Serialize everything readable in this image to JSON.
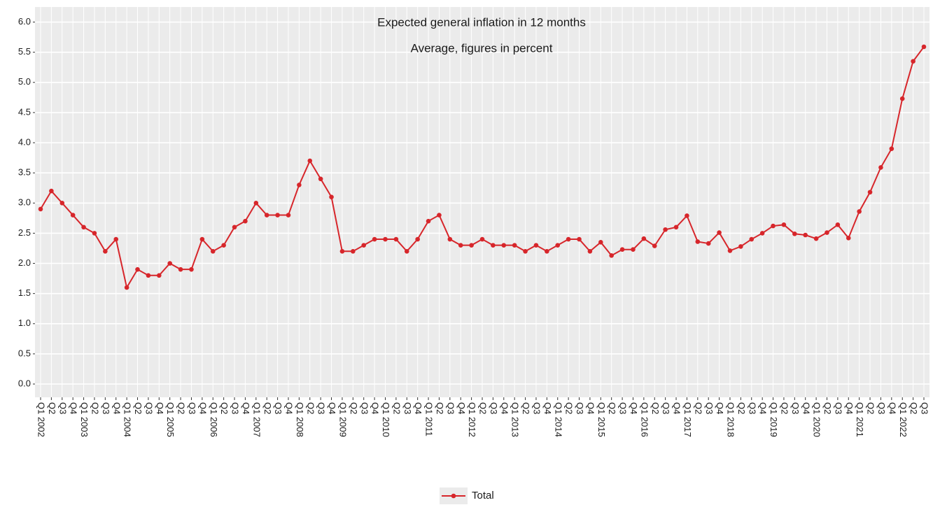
{
  "chart_data": {
    "type": "line",
    "title": "Expected general inflation in 12 months",
    "subtitle": "Average, figures in percent",
    "categories": [
      "Q1 2002",
      "Q2",
      "Q3",
      "Q4",
      "Q1 2003",
      "Q2",
      "Q3",
      "Q4",
      "Q1 2004",
      "Q2",
      "Q3",
      "Q4",
      "Q1 2005",
      "Q2",
      "Q3",
      "Q4",
      "Q1 2006",
      "Q2",
      "Q3",
      "Q4",
      "Q1 2007",
      "Q2",
      "Q3",
      "Q4",
      "Q1 2008",
      "Q2",
      "Q3",
      "Q4",
      "Q1 2009",
      "Q2",
      "Q3",
      "Q4",
      "Q1 2010",
      "Q2",
      "Q3",
      "Q4",
      "Q1 2011",
      "Q2",
      "Q3",
      "Q4",
      "Q1 2012",
      "Q2",
      "Q3",
      "Q4",
      "Q1 2013",
      "Q2",
      "Q3",
      "Q4",
      "Q1 2014",
      "Q2",
      "Q3",
      "Q4",
      "Q1 2015",
      "Q2",
      "Q3",
      "Q4",
      "Q1 2016",
      "Q2",
      "Q3",
      "Q4",
      "Q1 2017",
      "Q2",
      "Q3",
      "Q4",
      "Q1 2018",
      "Q2",
      "Q3",
      "Q4",
      "Q1 2019",
      "Q2",
      "Q3",
      "Q4",
      "Q1 2020",
      "Q2",
      "Q3",
      "Q4",
      "Q1 2021",
      "Q2",
      "Q3",
      "Q4",
      "Q1 2022",
      "Q2",
      "Q3"
    ],
    "series": [
      {
        "name": "Total",
        "color": "#d7262b",
        "values": [
          2.9,
          3.2,
          3.0,
          2.8,
          2.6,
          2.5,
          2.2,
          2.4,
          1.6,
          1.9,
          1.8,
          1.8,
          2.0,
          1.9,
          1.9,
          2.4,
          2.2,
          2.3,
          2.6,
          2.7,
          3.0,
          2.8,
          2.8,
          2.8,
          3.3,
          3.7,
          3.4,
          3.1,
          2.2,
          2.2,
          2.3,
          2.4,
          2.4,
          2.4,
          2.2,
          2.4,
          2.7,
          2.8,
          2.4,
          2.3,
          2.3,
          2.4,
          2.3,
          2.3,
          2.3,
          2.2,
          2.3,
          2.2,
          2.3,
          2.4,
          2.4,
          2.2,
          2.35,
          2.13,
          2.23,
          2.23,
          2.41,
          2.29,
          2.56,
          2.6,
          2.79,
          2.36,
          2.33,
          2.51,
          2.21,
          2.28,
          2.4,
          2.5,
          2.62,
          2.64,
          2.49,
          2.47,
          2.41,
          2.51,
          2.64,
          2.42,
          2.86,
          3.18,
          3.59,
          3.9,
          4.73,
          5.35,
          5.59
        ]
      }
    ],
    "ylim": [
      -0.22,
      6.25
    ],
    "yticks": [
      {
        "value": 0,
        "label": "0.0"
      },
      0.5,
      {
        "value": 1,
        "label": "1.0"
      },
      1.5,
      {
        "value": 2,
        "label": "2.0"
      },
      2.5,
      {
        "value": 3,
        "label": "3.0"
      },
      3.5,
      {
        "value": 4,
        "label": "4.0"
      },
      4.5,
      {
        "value": 5,
        "label": "5.0"
      },
      5.5,
      {
        "value": 6,
        "label": "6.0"
      }
    ],
    "grid": true,
    "legend": "bottom"
  }
}
